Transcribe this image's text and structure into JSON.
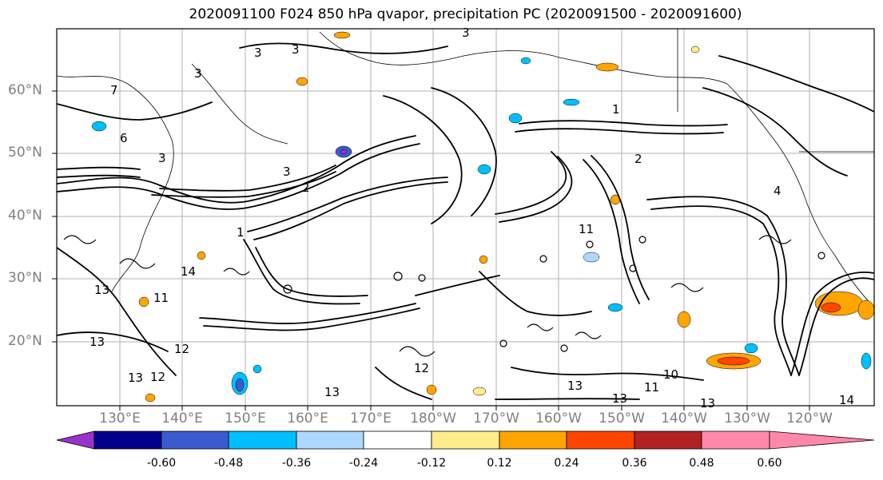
{
  "title": "2020091100 F024 850 hPa qvapor, precipitation PC (2020091500 - 2020091600)",
  "lat_labels": [
    "60°N",
    "50°N",
    "40°N",
    "30°N",
    "20°N"
  ],
  "lon_labels": [
    "130°E",
    "140°E",
    "150°E",
    "160°E",
    "170°E",
    "180°W",
    "170°W",
    "160°W",
    "150°W",
    "140°W",
    "130°W",
    "120°W"
  ],
  "contour_labels": [
    "3",
    "3",
    "3",
    "3",
    "7",
    "6",
    "3",
    "3",
    "2",
    "1",
    "11",
    "14",
    "13",
    "12",
    "12",
    "13",
    "11",
    "13",
    "13",
    "13",
    "13",
    "14",
    "13",
    "10",
    "11",
    "12",
    "4",
    "1",
    "2"
  ],
  "colorbar": {
    "colors": [
      "#9932cc",
      "#00008b",
      "#3a5bcf",
      "#00bfff",
      "#add8ff",
      "#ffffff",
      "#ffec8b",
      "#ffa500",
      "#ff4500",
      "#b22222",
      "#ff88aa"
    ],
    "tick_labels": [
      "-0.60",
      "-0.48",
      "-0.36",
      "-0.24",
      "-0.12",
      "0.12",
      "0.24",
      "0.36",
      "0.48",
      "0.60"
    ]
  }
}
